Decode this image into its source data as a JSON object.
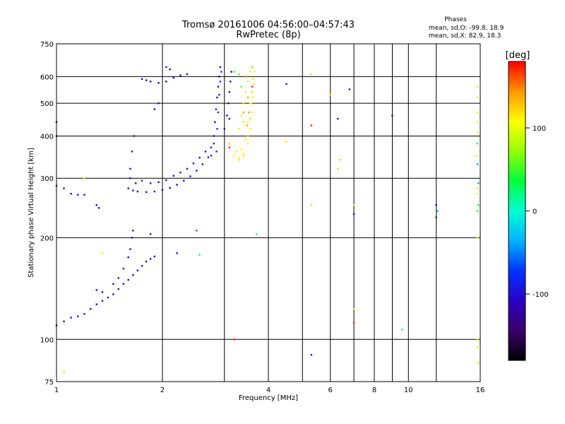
{
  "chart_data": {
    "type": "scatter",
    "title": "Tromsø 20161006 04:56:00–04:57:43",
    "subtitle": "RwPretec (8p)",
    "xlabel": "Frequency [MHz]",
    "ylabel": "Stationary phase Virtual Height [km]",
    "x_scale": "log",
    "y_scale": "log",
    "xlim": [
      1,
      16
    ],
    "ylim": [
      75,
      750
    ],
    "x_ticks": [
      1,
      2,
      4,
      6,
      8,
      10,
      16
    ],
    "x_tick_labels": [
      "1",
      "2",
      "4",
      "6",
      "8",
      "10",
      "16"
    ],
    "x_grid": [
      2,
      3,
      4,
      5,
      6,
      7,
      8,
      9,
      10,
      12
    ],
    "y_ticks": [
      75,
      100,
      200,
      300,
      400,
      500,
      600,
      750
    ],
    "y_tick_labels": [
      "75",
      "100",
      "200",
      "300",
      "400",
      "500",
      "600",
      "750"
    ],
    "y_grid": [
      100,
      200,
      300,
      400,
      500,
      600
    ],
    "grid": true,
    "info_lines": [
      "Phases",
      "mean, sd,O: -99.8, 18.9",
      "mean, sd,X:  82.9, 18.3"
    ],
    "colorbar": {
      "label": "[deg]",
      "min": -180,
      "max": 180,
      "ticks": [
        -100,
        0,
        100
      ],
      "colors": [
        "#000000",
        "#3a006a",
        "#2a00c8",
        "#0033ff",
        "#00b4ff",
        "#00ffd2",
        "#00ff3c",
        "#96ff00",
        "#ffff00",
        "#ff9600",
        "#ff0000"
      ]
    },
    "series": [
      {
        "phase": -100,
        "points": [
          [
            1.0,
            110
          ],
          [
            1.05,
            113
          ],
          [
            1.1,
            116
          ],
          [
            1.15,
            117
          ],
          [
            1.2,
            119
          ],
          [
            1.25,
            123
          ],
          [
            1.3,
            127
          ],
          [
            1.35,
            130
          ],
          [
            1.4,
            133
          ],
          [
            1.45,
            136
          ],
          [
            1.5,
            141
          ],
          [
            1.55,
            146
          ],
          [
            1.6,
            150
          ],
          [
            1.65,
            155
          ],
          [
            1.7,
            160
          ],
          [
            1.75,
            165
          ],
          [
            1.8,
            170
          ],
          [
            1.85,
            173
          ],
          [
            1.9,
            176
          ]
        ]
      },
      {
        "phase": -110,
        "points": [
          [
            1.3,
            140
          ],
          [
            1.35,
            138
          ],
          [
            1.45,
            146
          ],
          [
            1.5,
            152
          ],
          [
            1.55,
            162
          ],
          [
            1.6,
            175
          ],
          [
            1.62,
            185
          ],
          [
            1.64,
            200
          ],
          [
            1.65,
            210
          ]
        ]
      },
      {
        "phase": -105,
        "points": [
          [
            1.6,
            280
          ],
          [
            1.65,
            276
          ],
          [
            1.7,
            274
          ],
          [
            1.8,
            273
          ],
          [
            1.9,
            274
          ],
          [
            2.0,
            277
          ],
          [
            2.1,
            281
          ],
          [
            2.2,
            287
          ],
          [
            2.3,
            295
          ],
          [
            2.4,
            304
          ],
          [
            2.5,
            316
          ],
          [
            2.6,
            330
          ],
          [
            2.7,
            346
          ],
          [
            2.75,
            370
          ],
          [
            2.8,
            400
          ],
          [
            2.82,
            440
          ],
          [
            2.84,
            480
          ],
          [
            2.86,
            520
          ],
          [
            2.88,
            560
          ],
          [
            2.9,
            600
          ],
          [
            2.92,
            640
          ]
        ]
      },
      {
        "phase": -100,
        "points": [
          [
            1.62,
            320
          ],
          [
            1.64,
            360
          ],
          [
            1.66,
            400
          ],
          [
            1.62,
            300
          ],
          [
            1.68,
            290
          ],
          [
            1.75,
            295
          ],
          [
            1.85,
            290
          ],
          [
            1.95,
            292
          ],
          [
            2.05,
            296
          ],
          [
            2.15,
            305
          ],
          [
            2.25,
            312
          ],
          [
            2.35,
            320
          ],
          [
            2.45,
            332
          ],
          [
            2.55,
            345
          ],
          [
            2.65,
            360
          ]
        ]
      },
      {
        "phase": -75,
        "points": [
          [
            2.85,
            360
          ],
          [
            2.86,
            420
          ],
          [
            2.88,
            470
          ],
          [
            2.9,
            530
          ],
          [
            2.92,
            580
          ],
          [
            2.94,
            620
          ],
          [
            2.8,
            380
          ],
          [
            2.75,
            350
          ]
        ]
      },
      {
        "phase": -115,
        "points": [
          [
            3.05,
            460
          ],
          [
            3.08,
            500
          ],
          [
            3.1,
            540
          ],
          [
            3.12,
            580
          ],
          [
            3.14,
            620
          ],
          [
            3.0,
            420
          ],
          [
            3.1,
            450
          ]
        ]
      },
      {
        "phase": -105,
        "points": [
          [
            1.75,
            590
          ],
          [
            1.8,
            585
          ],
          [
            1.85,
            580
          ],
          [
            1.95,
            575
          ],
          [
            2.05,
            580
          ],
          [
            2.15,
            595
          ],
          [
            2.25,
            605
          ],
          [
            2.35,
            610
          ],
          [
            2.05,
            640
          ],
          [
            2.1,
            630
          ],
          [
            1.9,
            480
          ],
          [
            1.95,
            500
          ]
        ]
      },
      {
        "phase": -100,
        "points": [
          [
            1.0,
            285
          ],
          [
            1.05,
            280
          ],
          [
            1.1,
            270
          ],
          [
            1.15,
            268
          ],
          [
            1.2,
            268
          ],
          [
            1.0,
            440
          ],
          [
            1.0,
            400
          ],
          [
            1.3,
            250
          ],
          [
            1.32,
            245
          ]
        ]
      },
      {
        "phase": 110,
        "points": [
          [
            3.2,
            350
          ],
          [
            3.3,
            345
          ],
          [
            3.4,
            355
          ],
          [
            3.5,
            380
          ],
          [
            3.55,
            420
          ],
          [
            3.6,
            470
          ],
          [
            3.62,
            520
          ],
          [
            3.64,
            570
          ],
          [
            3.66,
            620
          ],
          [
            3.25,
            360
          ],
          [
            3.35,
            365
          ],
          [
            3.45,
            390
          ],
          [
            3.5,
            440
          ],
          [
            3.55,
            500
          ]
        ]
      },
      {
        "phase": 120,
        "points": [
          [
            3.3,
            340
          ],
          [
            3.4,
            350
          ],
          [
            3.5,
            400
          ],
          [
            3.55,
            450
          ],
          [
            3.58,
            500
          ],
          [
            3.6,
            540
          ],
          [
            3.62,
            590
          ]
        ]
      },
      {
        "phase": 95,
        "points": [
          [
            3.3,
            420
          ],
          [
            3.35,
            460
          ],
          [
            3.4,
            500
          ],
          [
            3.45,
            540
          ],
          [
            3.5,
            580
          ],
          [
            3.55,
            620
          ],
          [
            3.4,
            440
          ]
        ]
      },
      {
        "phase": 140,
        "points": [
          [
            3.45,
            600
          ],
          [
            3.5,
            520
          ],
          [
            3.52,
            470
          ],
          [
            3.4,
            470
          ],
          [
            3.48,
            430
          ]
        ]
      },
      {
        "phase": 60,
        "points": [
          [
            3.2,
            620
          ],
          [
            3.3,
            610
          ],
          [
            3.35,
            560
          ],
          [
            3.6,
            640
          ]
        ]
      },
      {
        "phase": -95,
        "points": [
          [
            4.5,
            570
          ],
          [
            6.8,
            550
          ],
          [
            6.3,
            450
          ],
          [
            7.0,
            235
          ],
          [
            9.0,
            460
          ],
          [
            12.0,
            250
          ],
          [
            12.0,
            230
          ],
          [
            1.85,
            205
          ],
          [
            2.2,
            180
          ],
          [
            5.3,
            90
          ]
        ]
      },
      {
        "phase": 15,
        "points": [
          [
            9.6,
            107
          ],
          [
            2.55,
            178
          ],
          [
            3.7,
            205
          ]
        ]
      },
      {
        "phase": 120,
        "points": [
          [
            5.3,
            610
          ],
          [
            6.0,
            530
          ],
          [
            6.4,
            340
          ],
          [
            6.3,
            320
          ],
          [
            5.3,
            250
          ],
          [
            7.0,
            250
          ],
          [
            7.0,
            123
          ],
          [
            4.5,
            385
          ],
          [
            3.1,
            380
          ],
          [
            1.35,
            180
          ],
          [
            1.05,
            80
          ],
          [
            1.2,
            300
          ]
        ]
      },
      {
        "phase": 170,
        "points": [
          [
            5.3,
            430
          ],
          [
            7.0,
            112
          ],
          [
            3.2,
            100
          ],
          [
            2.5,
            210
          ],
          [
            3.1,
            370
          ],
          [
            3.6,
            560
          ]
        ]
      },
      {
        "phase": 95,
        "points": [
          [
            15.7,
            100
          ],
          [
            15.7,
            95
          ],
          [
            15.7,
            280
          ],
          [
            15.7,
            410
          ],
          [
            15.7,
            520
          ],
          [
            15.7,
            560
          ],
          [
            15.7,
            470
          ],
          [
            15.7,
            200
          ],
          [
            15.7,
            270
          ],
          [
            15.7,
            440
          ],
          [
            15.8,
            85
          ],
          [
            15.6,
            350
          ]
        ]
      },
      {
        "phase": 40,
        "points": [
          [
            15.7,
            240
          ],
          [
            15.7,
            380
          ],
          [
            15.8,
            250
          ]
        ]
      },
      {
        "phase": -40,
        "points": [
          [
            15.8,
            290
          ],
          [
            15.7,
            330
          ],
          [
            12.1,
            240
          ]
        ]
      }
    ]
  }
}
